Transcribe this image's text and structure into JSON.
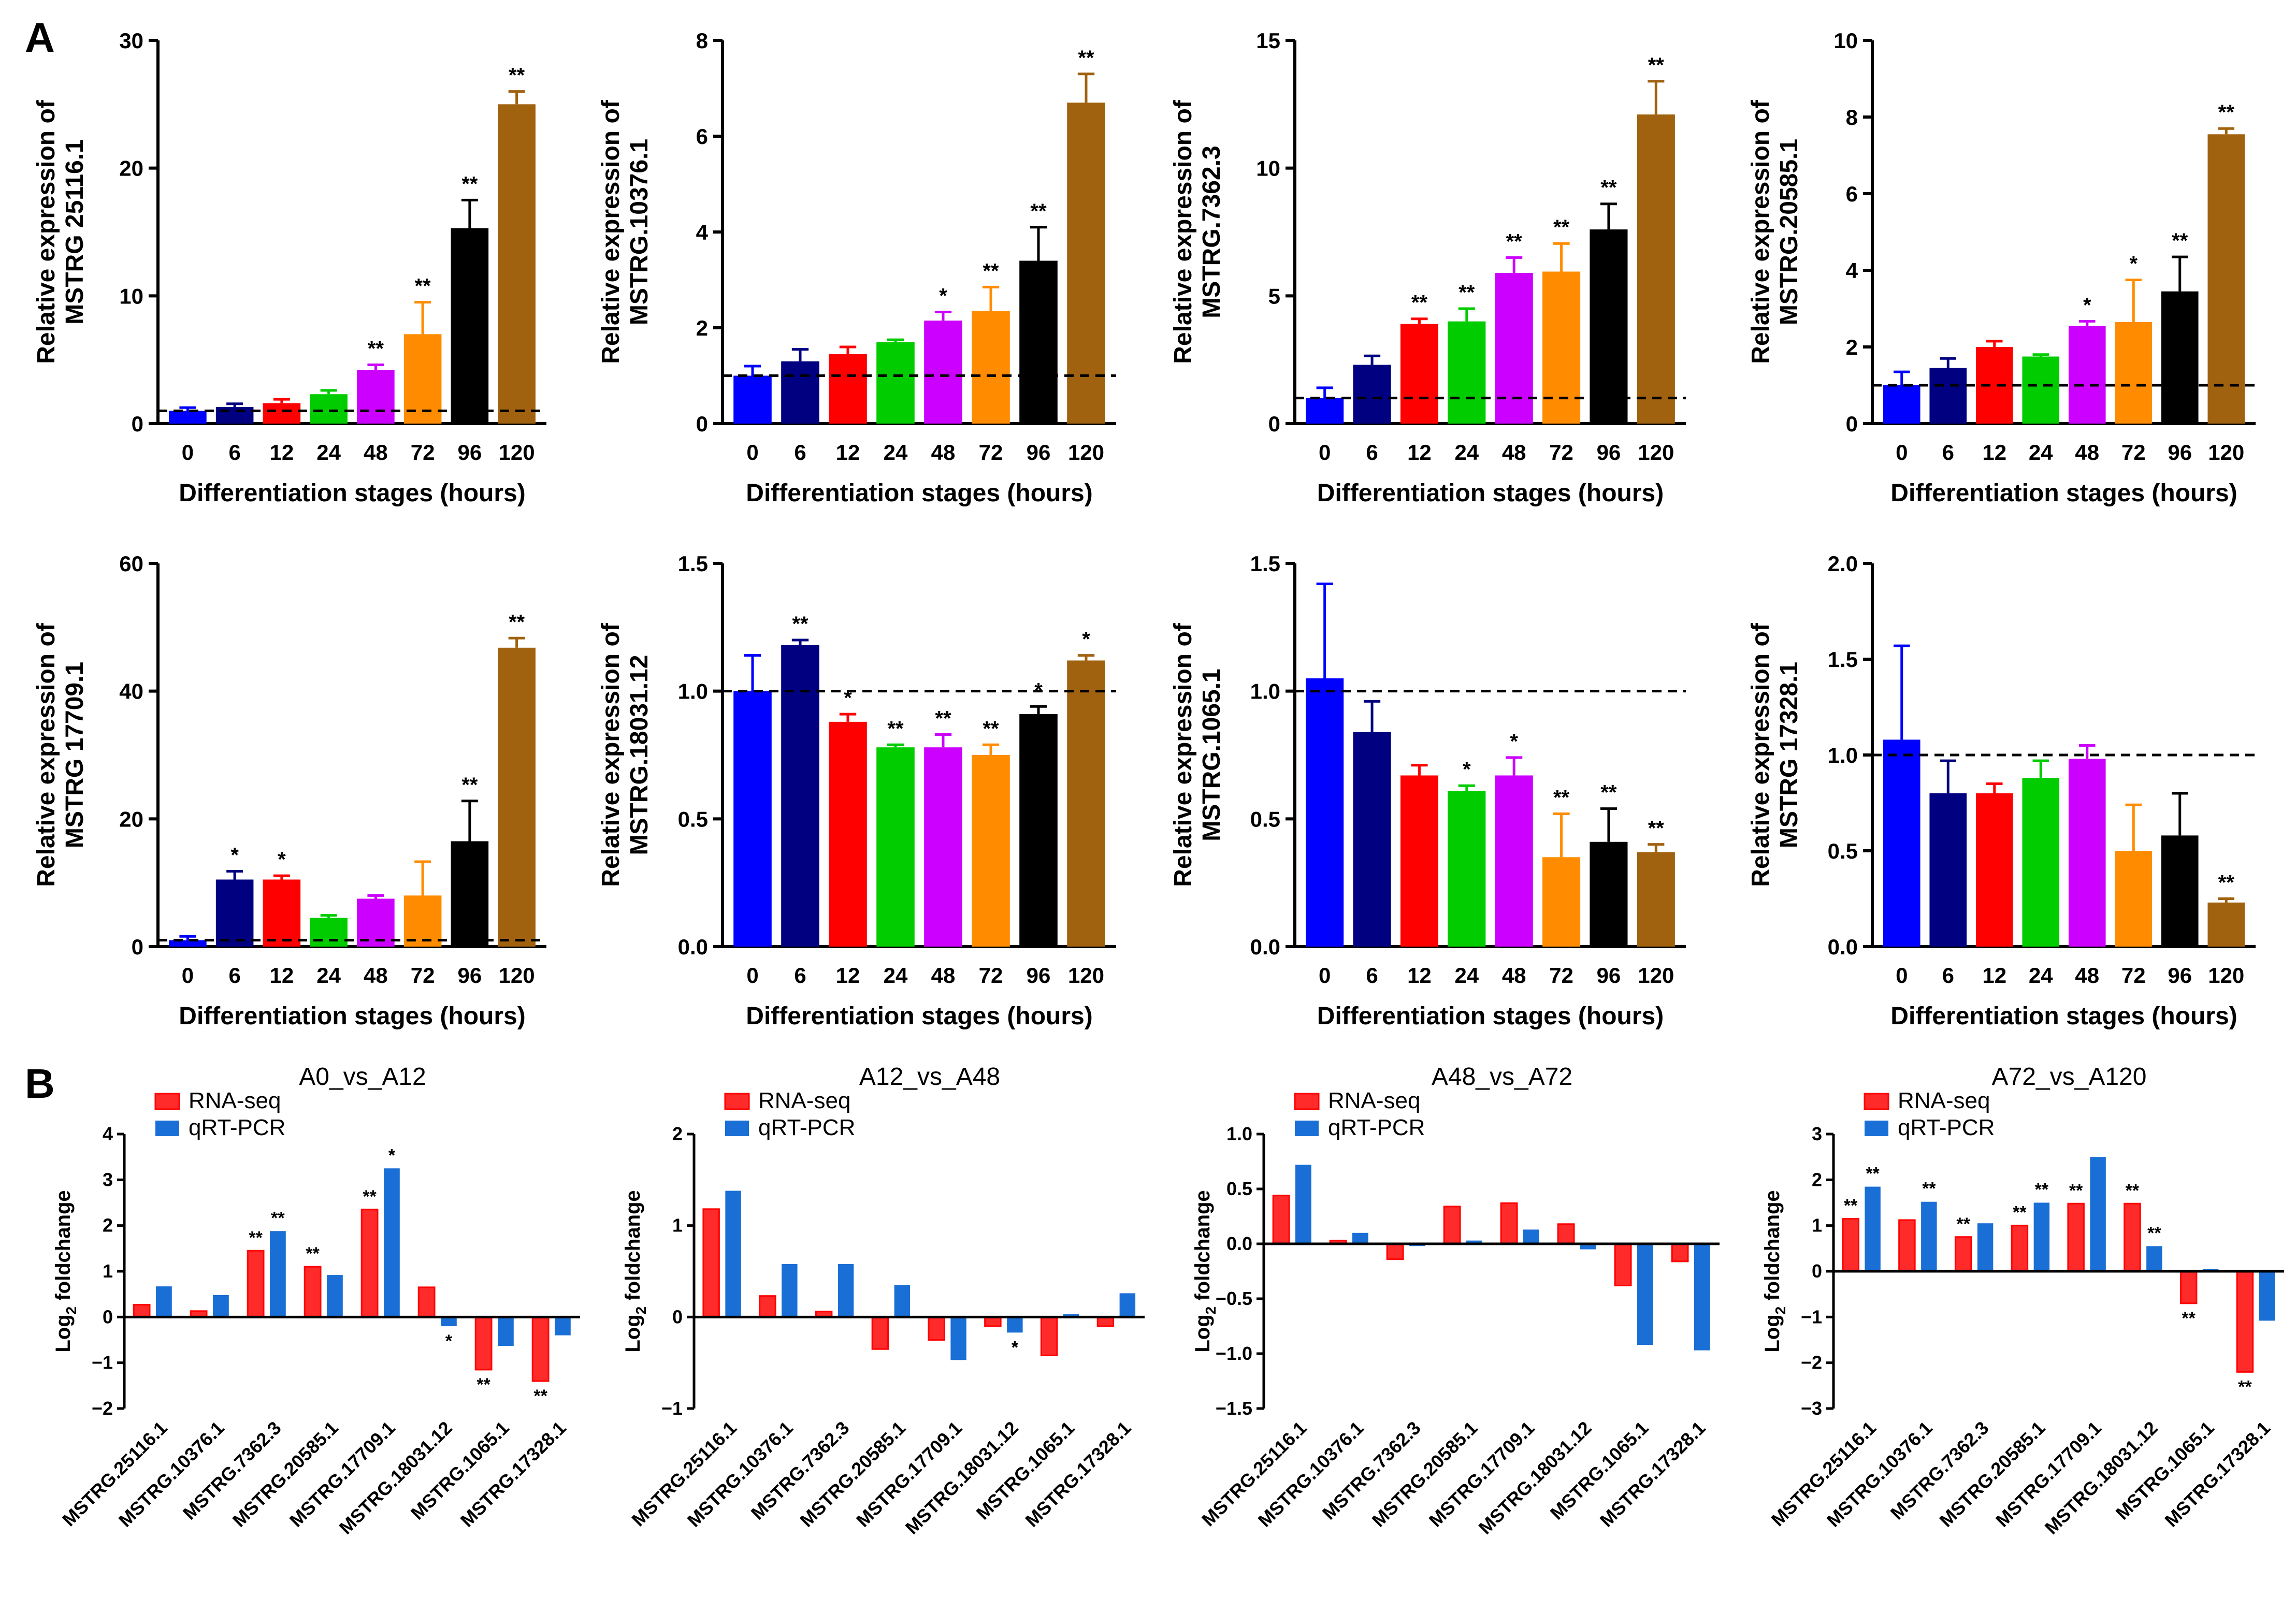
{
  "panel_labels": {
    "a": "A",
    "b": "B"
  },
  "colors": {
    "stage_colors": [
      "#0000ff",
      "#000080",
      "#ff0000",
      "#00cc00",
      "#cc00ff",
      "#ff8c00",
      "#000000",
      "#a0620f"
    ],
    "rnaseq": "#ff2b2b",
    "qrtpcr": "#1a6fd6"
  },
  "chart_data": [
    {
      "type": "bar",
      "gene": "MSTRG.25116.1",
      "ylabel_line1": "Relative expression of",
      "ylabel_line2": "MSTRG 25116.1",
      "xlabel": "Differentiation stages (hours)",
      "categories": [
        "0",
        "6",
        "12",
        "24",
        "48",
        "72",
        "96",
        "120"
      ],
      "values": [
        1.0,
        1.3,
        1.6,
        2.3,
        4.2,
        7.0,
        15.3,
        25.0
      ],
      "errors": [
        0.25,
        0.25,
        0.3,
        0.3,
        0.4,
        2.5,
        2.2,
        1.0
      ],
      "significance": [
        "",
        "",
        "",
        "",
        "**",
        "**",
        "**",
        "**"
      ],
      "ylim": [
        0,
        30
      ],
      "yticks": [
        "0",
        "10",
        "20",
        "30"
      ],
      "reference_line": 1.0
    },
    {
      "type": "bar",
      "gene": "MSTRG.10376.1",
      "ylabel_line1": "Relative expression of",
      "ylabel_line2": "MSTRG.10376.1",
      "xlabel": "Differentiation stages (hours)",
      "categories": [
        "0",
        "6",
        "12",
        "24",
        "48",
        "72",
        "96",
        "120"
      ],
      "values": [
        1.0,
        1.3,
        1.45,
        1.7,
        2.15,
        2.35,
        3.4,
        6.7
      ],
      "errors": [
        0.2,
        0.25,
        0.15,
        0.05,
        0.18,
        0.5,
        0.7,
        0.6
      ],
      "significance": [
        "",
        "",
        "",
        "",
        "*",
        "**",
        "**",
        "**"
      ],
      "ylim": [
        0,
        8
      ],
      "yticks": [
        "0",
        "2",
        "4",
        "6",
        "8"
      ],
      "reference_line": 1.0
    },
    {
      "type": "bar",
      "gene": "MSTRG.7362.3",
      "ylabel_line1": "Relative expression of",
      "ylabel_line2": "MSTRG.7362.3",
      "xlabel": "Differentiation stages (hours)",
      "categories": [
        "0",
        "6",
        "12",
        "24",
        "48",
        "72",
        "96",
        "120"
      ],
      "values": [
        1.0,
        2.3,
        3.9,
        4.0,
        5.9,
        5.95,
        7.6,
        12.1
      ],
      "errors": [
        0.4,
        0.35,
        0.2,
        0.5,
        0.6,
        1.1,
        1.0,
        1.3
      ],
      "significance": [
        "",
        "",
        "**",
        "**",
        "**",
        "**",
        "**",
        "**"
      ],
      "ylim": [
        0,
        15
      ],
      "yticks": [
        "0",
        "5",
        "10",
        "15"
      ],
      "reference_line": 1.0
    },
    {
      "type": "bar",
      "gene": "MSTRG.20585.1",
      "ylabel_line1": "Relative expression of",
      "ylabel_line2": "MSTRG.20585.1",
      "xlabel": "Differentiation stages (hours)",
      "categories": [
        "0",
        "6",
        "12",
        "24",
        "48",
        "72",
        "96",
        "120"
      ],
      "values": [
        1.0,
        1.45,
        2.0,
        1.75,
        2.55,
        2.65,
        3.45,
        7.55
      ],
      "errors": [
        0.35,
        0.25,
        0.15,
        0.05,
        0.12,
        1.1,
        0.9,
        0.15
      ],
      "significance": [
        "",
        "",
        "",
        "",
        "*",
        "*",
        "**",
        "**"
      ],
      "ylim": [
        0,
        10
      ],
      "yticks": [
        "0",
        "2",
        "4",
        "6",
        "8",
        "10"
      ],
      "reference_line": 1.0
    },
    {
      "type": "bar",
      "gene": "MSTRG.17709.1",
      "ylabel_line1": "Relative expression of",
      "ylabel_line2": "MSTRG 17709.1",
      "xlabel": "Differentiation stages (hours)",
      "categories": [
        "0",
        "6",
        "12",
        "24",
        "48",
        "72",
        "96",
        "120"
      ],
      "values": [
        1.0,
        10.5,
        10.5,
        4.5,
        7.5,
        8.0,
        16.5,
        46.8
      ],
      "errors": [
        0.6,
        1.3,
        0.6,
        0.4,
        0.5,
        5.3,
        6.3,
        1.5
      ],
      "significance": [
        "",
        "*",
        "*",
        "",
        "",
        "",
        "**",
        "**"
      ],
      "ylim": [
        0,
        60
      ],
      "yticks": [
        "0",
        "20",
        "40",
        "60"
      ],
      "reference_line": 1.0
    },
    {
      "type": "bar",
      "gene": "MSTRG.18031.12",
      "ylabel_line1": "Relative expression of",
      "ylabel_line2": "MSTRG.18031.12",
      "xlabel": "Differentiation stages (hours)",
      "categories": [
        "0",
        "6",
        "12",
        "24",
        "48",
        "72",
        "96",
        "120"
      ],
      "values": [
        1.0,
        1.18,
        0.88,
        0.78,
        0.78,
        0.75,
        0.91,
        1.12
      ],
      "errors": [
        0.14,
        0.02,
        0.03,
        0.01,
        0.05,
        0.04,
        0.03,
        0.02
      ],
      "significance": [
        "",
        "**",
        "*",
        "**",
        "**",
        "**",
        "*",
        "*"
      ],
      "ylim": [
        0,
        1.5
      ],
      "yticks": [
        "0.0",
        "0.5",
        "1.0",
        "1.5"
      ],
      "reference_line": 1.0
    },
    {
      "type": "bar",
      "gene": "MSTRG.1065.1",
      "ylabel_line1": "Relative expression of",
      "ylabel_line2": "MSTRG.1065.1",
      "xlabel": "Differentiation stages (hours)",
      "categories": [
        "0",
        "6",
        "12",
        "24",
        "48",
        "72",
        "96",
        "120"
      ],
      "values": [
        1.05,
        0.84,
        0.67,
        0.61,
        0.67,
        0.35,
        0.41,
        0.37
      ],
      "errors": [
        0.37,
        0.12,
        0.04,
        0.02,
        0.07,
        0.17,
        0.13,
        0.03
      ],
      "significance": [
        "",
        "",
        "",
        "*",
        "*",
        "**",
        "**",
        "**"
      ],
      "ylim": [
        0,
        1.5
      ],
      "yticks": [
        "0.0",
        "0.5",
        "1.0",
        "1.5"
      ],
      "reference_line": 1.0
    },
    {
      "type": "bar",
      "gene": "MSTRG.17328.1",
      "ylabel_line1": "Relative expression of",
      "ylabel_line2": "MSTRG 17328.1",
      "xlabel": "Differentiation stages (hours)",
      "categories": [
        "0",
        "6",
        "12",
        "24",
        "48",
        "72",
        "96",
        "120"
      ],
      "values": [
        1.08,
        0.8,
        0.8,
        0.88,
        0.98,
        0.5,
        0.58,
        0.23
      ],
      "errors": [
        0.49,
        0.17,
        0.05,
        0.09,
        0.07,
        0.24,
        0.22,
        0.02
      ],
      "significance": [
        "",
        "",
        "",
        "",
        "",
        "",
        "",
        "**"
      ],
      "ylim": [
        0,
        2.0
      ],
      "yticks": [
        "0.0",
        "0.5",
        "1.0",
        "1.5",
        "2.0"
      ],
      "reference_line": 1.0
    },
    {
      "type": "bar",
      "title": "A0_vs_A12",
      "ylabel": "Log",
      "ylabel_sub": "2",
      "ylabel_rest": " foldchange",
      "legend": [
        "RNA-seq",
        "qRT-PCR"
      ],
      "categories": [
        "MSTRG.25116.1",
        "MSTRG.10376.1",
        "MSTRG.7362.3",
        "MSTRG.20585.1",
        "MSTRG.17709.1",
        "MSTRG.18031.12",
        "MSTRG.1065.1",
        "MSTRG.17328.1"
      ],
      "series": [
        {
          "name": "RNA-seq",
          "values": [
            0.27,
            0.13,
            1.45,
            1.1,
            2.35,
            0.65,
            -1.15,
            -1.4
          ],
          "significance": [
            "",
            "",
            "**",
            "**",
            "**",
            "",
            "**",
            "**"
          ]
        },
        {
          "name": "qRT-PCR",
          "values": [
            0.67,
            0.48,
            1.88,
            0.92,
            3.25,
            -0.2,
            -0.63,
            -0.4
          ],
          "significance": [
            "",
            "",
            "**",
            "",
            "*",
            "*",
            "",
            ""
          ]
        }
      ],
      "ylim": [
        -2,
        4
      ],
      "yticks": [
        "−2",
        "−1",
        "0",
        "1",
        "2",
        "3",
        "4"
      ]
    },
    {
      "type": "bar",
      "title": "A12_vs_A48",
      "ylabel": "Log",
      "ylabel_sub": "2",
      "ylabel_rest": " foldchange",
      "legend": [
        "RNA-seq",
        "qRT-PCR"
      ],
      "categories": [
        "MSTRG.25116.1",
        "MSTRG.10376.1",
        "MSTRG.7362.3",
        "MSTRG.20585.1",
        "MSTRG.17709.1",
        "MSTRG.18031.12",
        "MSTRG.1065.1",
        "MSTRG.17328.1"
      ],
      "series": [
        {
          "name": "RNA-seq",
          "values": [
            1.18,
            0.23,
            0.06,
            -0.35,
            -0.25,
            -0.1,
            -0.42,
            -0.1
          ],
          "significance": [
            "",
            "",
            "",
            "",
            "",
            "",
            "",
            ""
          ]
        },
        {
          "name": "qRT-PCR",
          "values": [
            1.38,
            0.58,
            0.58,
            0.35,
            -0.47,
            -0.17,
            0.03,
            0.26
          ],
          "significance": [
            "",
            "",
            "",
            "",
            "",
            "*",
            "",
            ""
          ]
        }
      ],
      "ylim": [
        -1,
        2
      ],
      "yticks": [
        "−1",
        "0",
        "1",
        "2"
      ]
    },
    {
      "type": "bar",
      "title": "A48_vs_A72",
      "ylabel": "Log",
      "ylabel_sub": "2",
      "ylabel_rest": " foldchange",
      "legend": [
        "RNA-seq",
        "qRT-PCR"
      ],
      "categories": [
        "MSTRG.25116.1",
        "MSTRG.10376.1",
        "MSTRG.7362.3",
        "MSTRG.20585.1",
        "MSTRG.17709.1",
        "MSTRG.18031.12",
        "MSTRG.1065.1",
        "MSTRG.17328.1"
      ],
      "series": [
        {
          "name": "RNA-seq",
          "values": [
            0.44,
            0.03,
            -0.14,
            0.34,
            0.37,
            0.18,
            -0.38,
            -0.16
          ],
          "significance": [
            "",
            "",
            "",
            "",
            "",
            "",
            "",
            ""
          ]
        },
        {
          "name": "qRT-PCR",
          "values": [
            0.72,
            0.1,
            -0.02,
            0.03,
            0.13,
            -0.05,
            -0.92,
            -0.97
          ],
          "significance": [
            "",
            "",
            "",
            "",
            "",
            "",
            "",
            ""
          ]
        }
      ],
      "ylim": [
        -1.5,
        1.0
      ],
      "yticks": [
        "−1.5",
        "−1.0",
        "−0.5",
        "0.0",
        "0.5",
        "1.0"
      ]
    },
    {
      "type": "bar",
      "title": "A72_vs_A120",
      "ylabel": "Log",
      "ylabel_sub": "2",
      "ylabel_rest": " foldchange",
      "legend": [
        "RNA-seq",
        "qRT-PCR"
      ],
      "categories": [
        "MSTRG.25116.1",
        "MSTRG.10376.1",
        "MSTRG.7362.3",
        "MSTRG.20585.1",
        "MSTRG.17709.1",
        "MSTRG.18031.12",
        "MSTRG.1065.1",
        "MSTRG.17328.1"
      ],
      "series": [
        {
          "name": "RNA-seq",
          "values": [
            1.15,
            1.12,
            0.75,
            1.0,
            1.48,
            1.48,
            -0.7,
            -2.2
          ],
          "significance": [
            "**",
            "",
            "**",
            "**",
            "**",
            "**",
            "**",
            "**"
          ]
        },
        {
          "name": "qRT-PCR",
          "values": [
            1.85,
            1.52,
            1.05,
            1.5,
            2.5,
            0.55,
            0.05,
            -1.08
          ],
          "significance": [
            "**",
            "**",
            "",
            "**",
            "",
            "**",
            "",
            ""
          ]
        }
      ],
      "ylim": [
        -3,
        3
      ],
      "yticks": [
        "−3",
        "−2",
        "−1",
        "0",
        "1",
        "2",
        "3"
      ]
    }
  ]
}
